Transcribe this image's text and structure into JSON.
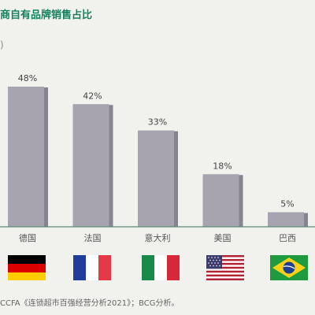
{
  "title": "商自有品牌销售占比",
  "unit": ")",
  "source": "CCFA《连锁超市百强经营分析2021》；BCG分析。",
  "colors": {
    "bar": "#a7a3af",
    "bar_side": "#88848f",
    "baseline": "#5b8a74",
    "title": "#16815f"
  },
  "chart_data": {
    "type": "bar",
    "categories": [
      "德国",
      "法国",
      "意大利",
      "美国",
      "巴西"
    ],
    "values": [
      48,
      42,
      33,
      18,
      5
    ],
    "value_labels": [
      "48%",
      "42%",
      "33%",
      "18%",
      "5%"
    ],
    "ylim": [
      0,
      50
    ],
    "grid": false,
    "legend": "none"
  },
  "flags": [
    {
      "country": "德国",
      "icon": "germany-flag-icon"
    },
    {
      "country": "法国",
      "icon": "france-flag-icon"
    },
    {
      "country": "意大利",
      "icon": "italy-flag-icon"
    },
    {
      "country": "美国",
      "icon": "usa-flag-icon"
    },
    {
      "country": "巴西",
      "icon": "brazil-flag-icon"
    }
  ]
}
